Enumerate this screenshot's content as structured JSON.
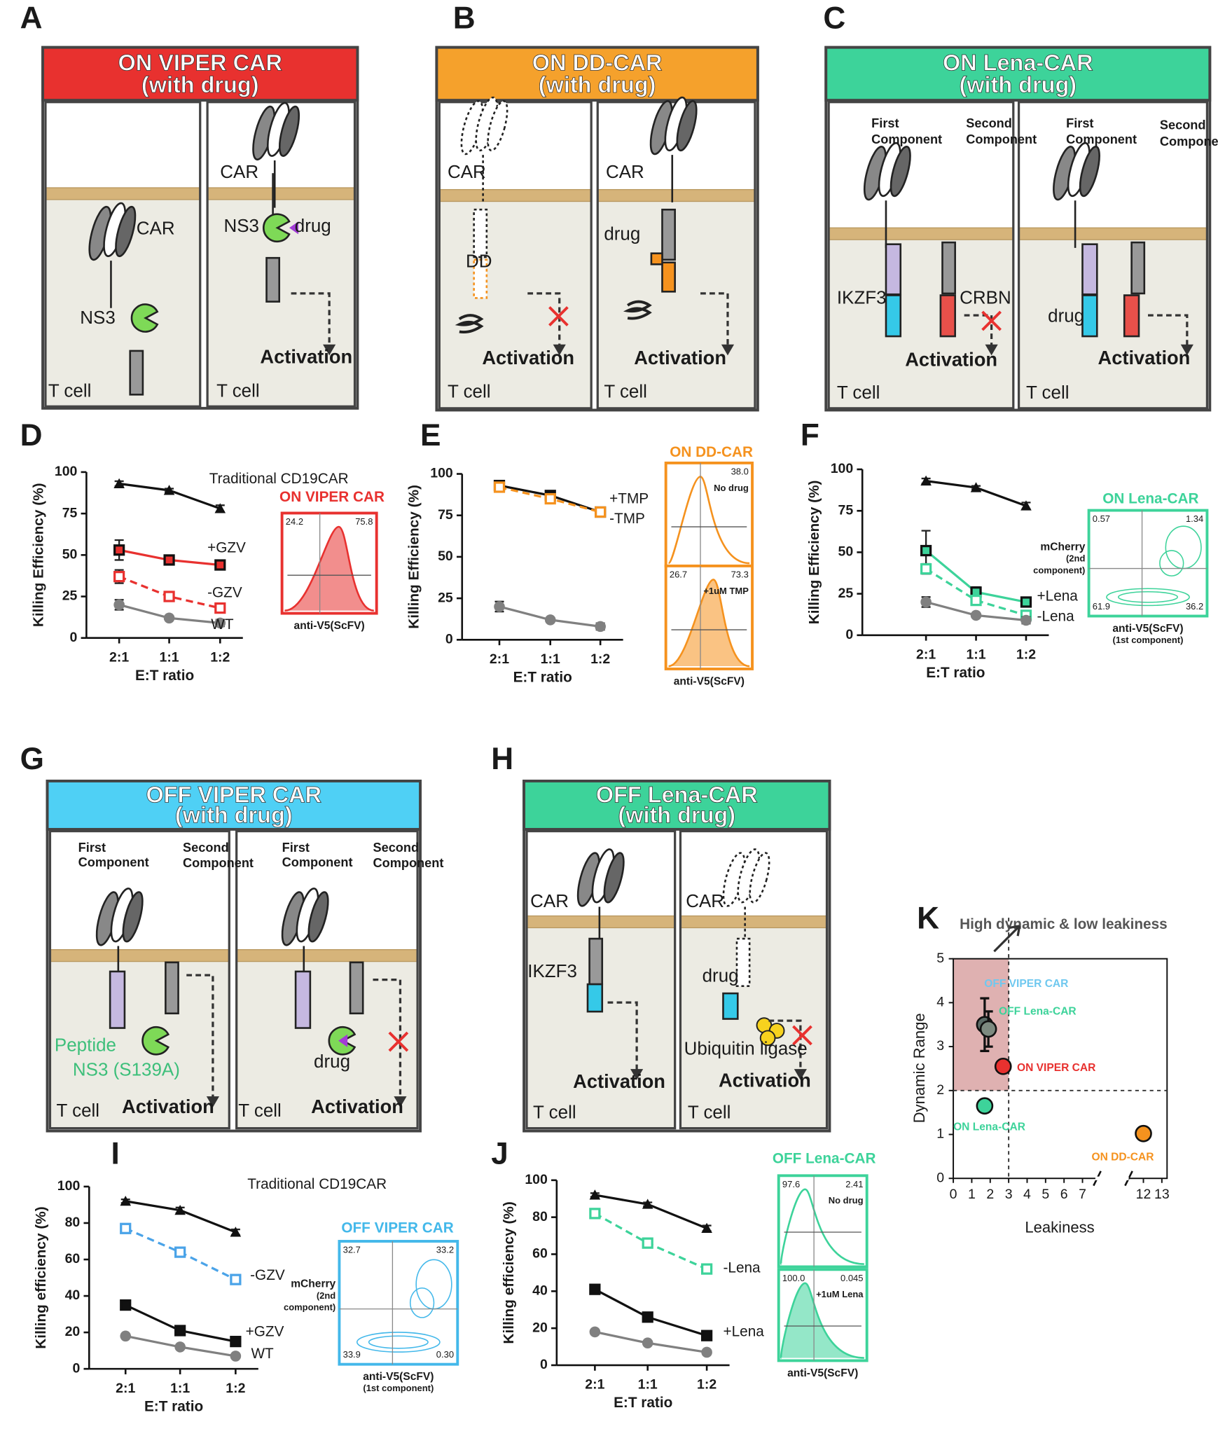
{
  "letters": [
    "A",
    "B",
    "C",
    "D",
    "E",
    "F",
    "G",
    "H",
    "I",
    "J",
    "K"
  ],
  "diagrams": [
    {
      "title": "ON VIPER CAR",
      "subtitle": "(with drug)",
      "color": "#e8312f",
      "labels": [
        "CAR",
        "NS3",
        "T cell",
        "CAR",
        "NS3",
        "drug",
        "Activation",
        "T cell"
      ]
    },
    {
      "title": "ON DD-CAR",
      "subtitle": "(with drug)",
      "color": "#f5a12c",
      "labels": [
        "CAR",
        "DD",
        "Activation",
        "T cell",
        "CAR",
        "drug",
        "Activation",
        "T cell"
      ]
    },
    {
      "title": "ON Lena-CAR",
      "subtitle": "(with drug)",
      "color": "#3dd39a",
      "labels": [
        "First",
        "Component",
        "Second",
        "Component",
        "IKZF3",
        "CRBN",
        "Activation",
        "T cell",
        "First",
        "Component",
        "Second",
        "Component",
        "drug",
        "Activation",
        "T cell"
      ]
    },
    {
      "title": "OFF VIPER CAR",
      "subtitle": "(with drug)",
      "color": "#4fd0f5",
      "labels": [
        "First",
        "Component",
        "Second",
        "Component",
        "Peptide",
        "NS3 (S139A)",
        "T cell",
        "Activation",
        "First",
        "Component",
        "Second",
        "Component",
        "drug",
        "T cell",
        "Activation"
      ]
    },
    {
      "title": "OFF Lena-CAR",
      "subtitle": "(with drug)",
      "color": "#3dd39a",
      "labels": [
        "CAR",
        "IKZF3",
        "Activation",
        "T cell",
        "CAR",
        "drug",
        "Ubiquitin ligase",
        "Activation",
        "T cell"
      ]
    }
  ],
  "chart_data": [
    {
      "type": "line",
      "categories": [
        "2:1",
        "1:1",
        "1:2"
      ],
      "xlabel": "E:T ratio",
      "ylabel": "Killing Efficiency (%)",
      "ylim": [
        0,
        100
      ],
      "yticks": [
        0,
        25,
        50,
        75,
        100
      ],
      "series": [
        {
          "name": "Traditional CD19CAR",
          "color": "#111111",
          "marker": "triangle",
          "values": [
            93,
            89,
            78
          ],
          "errors": [
            1.5,
            1,
            2
          ]
        },
        {
          "name": "+GZV",
          "color": "#e8312f",
          "marker": "square",
          "values": [
            53,
            47,
            44
          ],
          "errors": [
            6,
            2,
            1.5
          ]
        },
        {
          "name": "-GZV",
          "color": "#e8312f",
          "marker": "square",
          "dashed": true,
          "values": [
            37,
            25,
            18
          ],
          "errors": [
            4,
            1,
            1
          ]
        },
        {
          "name": "WT",
          "color": "#808080",
          "marker": "circle",
          "values": [
            20,
            12,
            9
          ],
          "errors": [
            3,
            1,
            2
          ]
        }
      ],
      "inset": {
        "title": "ON VIPER CAR",
        "color": "#e8312f",
        "plots": [
          {
            "style": "histogram",
            "gates": [
              "24.2",
              "75.8"
            ]
          }
        ],
        "xlabel": [
          "anti-V5(ScFV)"
        ]
      }
    },
    {
      "type": "line",
      "categories": [
        "2:1",
        "1:1",
        "1:2"
      ],
      "xlabel": "E:T ratio",
      "ylabel": "Killing Efficiency (%)",
      "ylim": [
        0,
        100
      ],
      "yticks": [
        0,
        25,
        50,
        75,
        100
      ],
      "series": [
        {
          "name": "+TMP",
          "color": "#111111",
          "marker": "square",
          "values": [
            93,
            87,
            77
          ],
          "errors": [
            1,
            2,
            2
          ]
        },
        {
          "name": "-TMP",
          "color": "#f5921e",
          "marker": "square",
          "dashed": true,
          "values": [
            92,
            85,
            77
          ],
          "errors": [
            1,
            2,
            1
          ]
        },
        {
          "color": "#808080",
          "marker": "circle",
          "values": [
            20,
            12,
            8
          ],
          "errors": [
            3,
            1,
            2
          ]
        }
      ],
      "inset": {
        "title": "ON DD-CAR",
        "color": "#f5921e",
        "plots": [
          {
            "style": "histogram-line",
            "gates": [
              null,
              "38.0"
            ],
            "note": "No drug"
          },
          {
            "style": "histogram",
            "gates": [
              "26.7",
              "73.3"
            ],
            "note": "+1uM TMP"
          }
        ],
        "xlabel": [
          "anti-V5(ScFV)"
        ]
      }
    },
    {
      "type": "line",
      "categories": [
        "2:1",
        "1:1",
        "1:2"
      ],
      "xlabel": "E:T ratio",
      "ylabel": "Killing Efficiency (%)",
      "ylim": [
        0,
        100
      ],
      "yticks": [
        0,
        25,
        50,
        75,
        100
      ],
      "series": [
        {
          "color": "#111111",
          "marker": "triangle",
          "values": [
            93,
            89,
            78
          ],
          "errors": [
            1.5,
            1,
            2
          ]
        },
        {
          "name": "+Lena",
          "color": "#3dd39a",
          "marker": "square",
          "values": [
            51,
            26,
            20
          ],
          "errors": [
            12,
            3,
            1.5
          ]
        },
        {
          "name": "-Lena",
          "color": "#3dd39a",
          "marker": "square",
          "dashed": true,
          "values": [
            40,
            21,
            12
          ],
          "errors": [
            3,
            2,
            1
          ]
        },
        {
          "color": "#808080",
          "marker": "circle",
          "values": [
            20,
            12,
            9
          ],
          "errors": [
            3,
            1,
            2
          ]
        }
      ],
      "inset": {
        "title": "ON Lena-CAR",
        "color": "#3dd39a",
        "plots": [
          {
            "style": "contour",
            "gates": [
              "0.57",
              "1.34",
              "61.9",
              "36.2"
            ]
          }
        ],
        "xlabel": [
          "anti-V5(ScFV)",
          "(1st component)"
        ],
        "ylabel": [
          "mCherry",
          "(2nd",
          "component)"
        ]
      }
    },
    {
      "type": "line",
      "categories": [
        "2:1",
        "1:1",
        "1:2"
      ],
      "xlabel": "E:T ratio",
      "ylabel": "Killing efficiency (%)",
      "ylim": [
        0,
        100
      ],
      "yticks": [
        0,
        20,
        40,
        60,
        80,
        100
      ],
      "series": [
        {
          "name": "Traditional CD19CAR",
          "color": "#111111",
          "marker": "triangle",
          "values": [
            92,
            87,
            75
          ],
          "errors": [
            1,
            1.5,
            1.5
          ]
        },
        {
          "name": "-GZV",
          "color": "#4aa3e8",
          "marker": "square",
          "dashed": true,
          "values": [
            77,
            64,
            49
          ],
          "errors": [
            1,
            1,
            2
          ]
        },
        {
          "name": "+GZV",
          "color": "#111111",
          "marker": "square",
          "values": [
            35,
            21,
            15
          ],
          "errors": [
            1,
            1,
            2
          ]
        },
        {
          "name": "WT",
          "color": "#808080",
          "marker": "circle",
          "values": [
            18,
            12,
            7
          ],
          "errors": [
            1,
            1,
            1
          ]
        }
      ],
      "inset": {
        "title": "OFF VIPER CAR",
        "color": "#43b8ea",
        "plots": [
          {
            "style": "contour",
            "gates": [
              "32.7",
              "33.2",
              "33.9",
              "0.30"
            ]
          }
        ],
        "xlabel": [
          "anti-V5(ScFV)",
          "(1st component)"
        ],
        "ylabel": [
          "mCherry",
          "(2nd",
          "component)"
        ]
      }
    },
    {
      "type": "line",
      "categories": [
        "2:1",
        "1:1",
        "1:2"
      ],
      "xlabel": "E:T ratio",
      "ylabel": "Killing efficiency (%)",
      "ylim": [
        0,
        100
      ],
      "yticks": [
        0,
        20,
        40,
        60,
        80,
        100
      ],
      "series": [
        {
          "color": "#111111",
          "marker": "triangle",
          "values": [
            92,
            87,
            74
          ],
          "errors": [
            1,
            1,
            1.5
          ]
        },
        {
          "name": "-Lena",
          "color": "#3dd39a",
          "marker": "square",
          "dashed": true,
          "values": [
            82,
            66,
            52
          ],
          "errors": [
            1,
            1,
            1
          ]
        },
        {
          "name": "+Lena",
          "color": "#111111",
          "marker": "square",
          "values": [
            41,
            26,
            16
          ],
          "errors": [
            1,
            1,
            1
          ]
        },
        {
          "color": "#808080",
          "marker": "circle",
          "values": [
            18,
            12,
            7
          ],
          "errors": [
            1,
            1,
            1
          ]
        }
      ],
      "inset": {
        "title": "OFF Lena-CAR",
        "color": "#3dd39a",
        "plots": [
          {
            "style": "histogram-line",
            "gates": [
              "97.6",
              "2.41"
            ],
            "note": "No drug"
          },
          {
            "style": "histogram",
            "gates": [
              "100.0",
              "0.045"
            ],
            "note": "+1uM Lena"
          }
        ],
        "xlabel": [
          "anti-V5(ScFV)"
        ]
      }
    },
    {
      "type": "scatter",
      "title": "High dynamic & low leakiness",
      "xlabel": "Leakiness",
      "ylabel": "Dynamic Range",
      "xlim": [
        0,
        13
      ],
      "xticks": [
        0,
        1,
        2,
        3,
        4,
        5,
        6,
        7,
        12,
        13
      ],
      "xbreak": [
        7.5,
        11.5
      ],
      "ylim": [
        0,
        5
      ],
      "yticks": [
        0,
        1,
        2,
        3,
        4,
        5
      ],
      "thresholds": {
        "x": 3,
        "y": 2
      },
      "series": [
        {
          "name": "OFF VIPER CAR",
          "color": "#5b6b66",
          "label_color": "#6fc8ef",
          "x": [
            1.7
          ],
          "y": [
            3.5
          ],
          "yerr": [
            0.6
          ]
        },
        {
          "name": "OFF Lena-CAR",
          "color": "#7d8a80",
          "label_color": "#3dd39a",
          "x": [
            1.9
          ],
          "y": [
            3.4
          ],
          "yerr": [
            0.4
          ]
        },
        {
          "name": "ON VIPER CAR",
          "color": "#e8312f",
          "label_color": "#e8312f",
          "x": [
            2.7
          ],
          "y": [
            2.55
          ]
        },
        {
          "name": "ON Lena-CAR",
          "color": "#3dd39a",
          "label_color": "#3dd39a",
          "x": [
            1.7
          ],
          "y": [
            1.65
          ]
        },
        {
          "name": "ON DD-CAR",
          "color": "#f5921e",
          "label_color": "#f5921e",
          "x": [
            12
          ],
          "y": [
            1.02
          ]
        }
      ]
    }
  ]
}
